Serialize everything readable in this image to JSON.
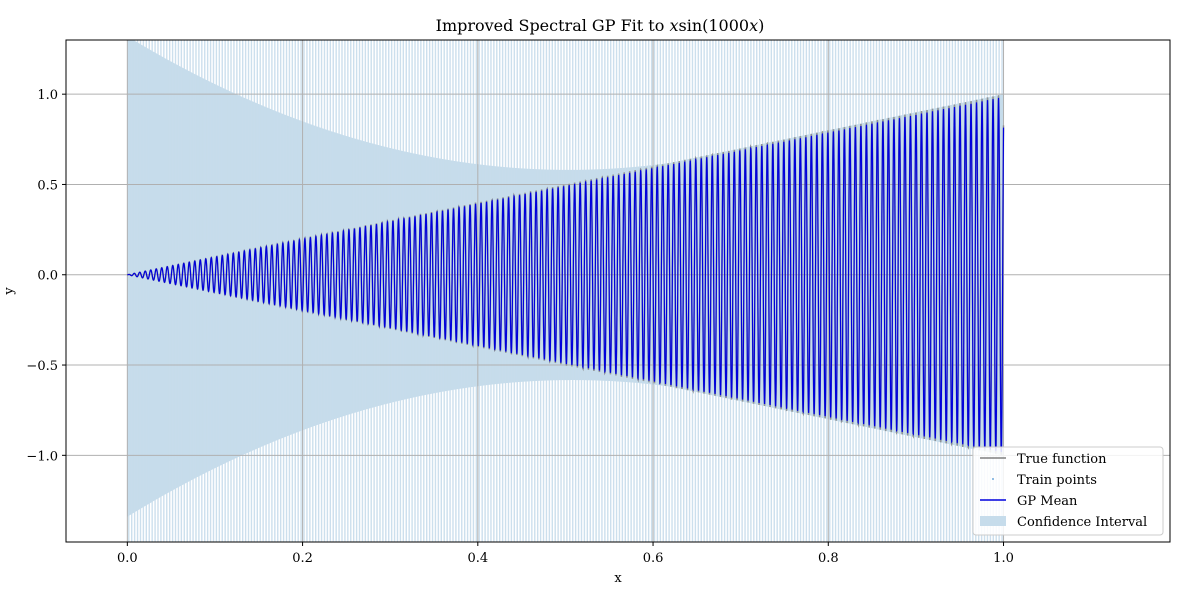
{
  "chart_data": {
    "type": "line",
    "title": "Improved Spectral GP Fit to ",
    "title_math": "x",
    "title_math_sin": "sin",
    "title_math_arg": "(1000",
    "title_math_x2": "x",
    "title_math_close": ")",
    "xlabel": "x",
    "ylabel": "y",
    "xlim": [
      -0.07,
      1.19
    ],
    "ylim": [
      -1.48,
      1.3
    ],
    "xticks": [
      0.0,
      0.2,
      0.4,
      0.6,
      0.8,
      1.0
    ],
    "xtick_labels": [
      "0.0",
      "0.2",
      "0.4",
      "0.6",
      "0.8",
      "1.0"
    ],
    "yticks": [
      -1.0,
      -0.5,
      0.0,
      0.5,
      1.0
    ],
    "ytick_labels": [
      "−1.0",
      "−0.5",
      "0.0",
      "0.5",
      "1.0"
    ],
    "grid": true,
    "legend_position": "lower-right",
    "function": "x*sin(1000*x)",
    "x_range": [
      0.0,
      1.0
    ],
    "series": [
      {
        "name": "True function",
        "kind": "line",
        "color": "#808080"
      },
      {
        "name": "Train points",
        "kind": "points",
        "color": "#6fa8dc"
      },
      {
        "name": "GP Mean",
        "kind": "line",
        "color": "#0000ee"
      },
      {
        "name": "Confidence Interval",
        "kind": "band",
        "color": "#bcd6e8"
      }
    ],
    "confidence_interval": {
      "upper_at_x0": 1.3,
      "lower_at_x0": -1.32,
      "inner_upper_at_x1": 1.0,
      "inner_lower_at_x1": -1.0
    }
  },
  "colors": {
    "band": "#c6dceb",
    "mean": "#0000dd",
    "true_fn": "#808080",
    "grid": "#b0b0b0"
  }
}
